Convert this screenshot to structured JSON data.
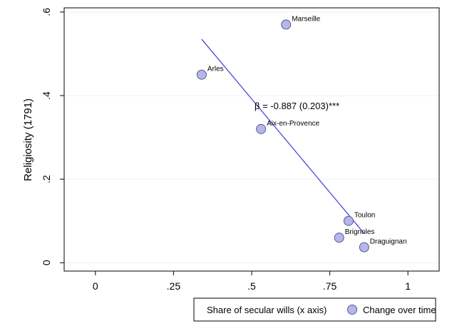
{
  "chart_data": {
    "type": "scatter",
    "title": "",
    "xlabel": "",
    "ylabel": "Religiosity (1791)",
    "xlim": [
      -0.1,
      1.1
    ],
    "ylim": [
      -0.02,
      0.61
    ],
    "xticks": [
      {
        "value": 0,
        "label": "0"
      },
      {
        "value": 0.25,
        "label": ".25"
      },
      {
        "value": 0.5,
        "label": ".5"
      },
      {
        "value": 0.75,
        "label": ".75"
      },
      {
        "value": 1,
        "label": "1"
      }
    ],
    "yticks": [
      {
        "value": 0,
        "label": "0"
      },
      {
        "value": 0.2,
        "label": ".2"
      },
      {
        "value": 0.4,
        "label": ".4"
      },
      {
        "value": 0.6,
        "label": ".6"
      }
    ],
    "grid": "horizontal",
    "points": [
      {
        "label": "Marseille",
        "x": 0.61,
        "y": 0.57
      },
      {
        "label": "Arles",
        "x": 0.34,
        "y": 0.45
      },
      {
        "label": "Aix-en-Provence",
        "x": 0.53,
        "y": 0.32
      },
      {
        "label": "Toulon",
        "x": 0.81,
        "y": 0.1
      },
      {
        "label": "Brignoles",
        "x": 0.78,
        "y": 0.06
      },
      {
        "label": "Draguignan",
        "x": 0.86,
        "y": 0.037
      }
    ],
    "fit_line": {
      "x": [
        0.34,
        0.86
      ],
      "y": [
        0.535,
        0.07
      ]
    },
    "annotation": "β = -0.887 (0.203)***",
    "legend": {
      "placement": "bottom-right",
      "entries": [
        "Share of secular wills (x axis)",
        "Change over time"
      ]
    },
    "colors": {
      "marker_fill": "#b4b6ec",
      "marker_stroke": "#5a5a8a",
      "fit_line": "#3c3cdc",
      "gridline": "#eaf0f4"
    }
  }
}
